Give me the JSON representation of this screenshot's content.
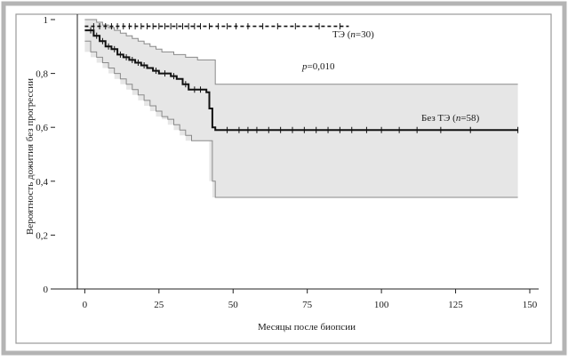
{
  "chart_data": {
    "type": "line",
    "title": "",
    "xlabel": "Месяцы после биопсии",
    "ylabel": "Вероятность дожития без прогрессии",
    "xlim": [
      -10,
      153
    ],
    "ylim": [
      0,
      1
    ],
    "x_ticks": [
      "0",
      "25",
      "50",
      "75",
      "100",
      "125",
      "150"
    ],
    "y_ticks": [
      "0",
      "0,2",
      "0,4",
      "0,6",
      "0,8",
      "1"
    ],
    "grid": false,
    "series": [
      {
        "name": "ТЭ",
        "n_label": "n",
        "n_value": "=30",
        "style": "dashed",
        "color": "#111111",
        "x": [
          0,
          89
        ],
        "y": [
          0.975,
          0.975
        ],
        "censored_x": [
          3,
          5,
          7,
          9,
          11,
          13,
          15,
          17,
          19,
          21,
          23,
          25,
          27,
          29,
          31,
          33,
          35,
          37,
          39,
          42,
          45,
          48,
          51,
          55,
          60,
          65,
          71,
          79,
          86
        ]
      },
      {
        "name": "Без ТЭ",
        "n_label": "n",
        "n_value": "=58",
        "style": "solid",
        "color": "#111111",
        "x": [
          0,
          3,
          5,
          7,
          9,
          11,
          13,
          15,
          17,
          19,
          21,
          23,
          25,
          29,
          31,
          33,
          35,
          38,
          40,
          41,
          42,
          43,
          44,
          146
        ],
        "y": [
          0.96,
          0.94,
          0.92,
          0.9,
          0.89,
          0.87,
          0.86,
          0.85,
          0.84,
          0.83,
          0.82,
          0.81,
          0.8,
          0.79,
          0.78,
          0.76,
          0.74,
          0.74,
          0.74,
          0.73,
          0.67,
          0.6,
          0.59,
          0.59
        ],
        "censored_x": [
          2,
          4,
          6,
          8,
          10,
          12,
          14,
          16,
          18,
          20,
          24,
          27,
          30,
          34,
          37,
          39,
          48,
          52,
          55,
          58,
          62,
          66,
          70,
          74,
          78,
          82,
          86,
          90,
          95,
          100,
          106,
          112,
          120,
          130,
          146
        ],
        "ci_upper": {
          "x": [
            0,
            2,
            4,
            6,
            8,
            10,
            12,
            14,
            16,
            18,
            20,
            22,
            24,
            26,
            28,
            30,
            32,
            34,
            36,
            38,
            40,
            42,
            44,
            146
          ],
          "y": [
            1.0,
            1.0,
            0.99,
            0.98,
            0.97,
            0.96,
            0.95,
            0.94,
            0.93,
            0.92,
            0.91,
            0.9,
            0.89,
            0.88,
            0.88,
            0.87,
            0.87,
            0.86,
            0.86,
            0.85,
            0.85,
            0.85,
            0.76,
            0.76
          ]
        },
        "ci_lower": {
          "x": [
            0,
            2,
            4,
            6,
            8,
            10,
            12,
            14,
            16,
            18,
            20,
            22,
            24,
            26,
            28,
            30,
            32,
            34,
            36,
            38,
            40,
            42,
            43,
            44,
            146
          ],
          "y": [
            0.92,
            0.88,
            0.86,
            0.84,
            0.82,
            0.8,
            0.78,
            0.76,
            0.74,
            0.72,
            0.7,
            0.68,
            0.66,
            0.64,
            0.63,
            0.61,
            0.59,
            0.57,
            0.55,
            0.55,
            0.55,
            0.55,
            0.4,
            0.34,
            0.34
          ]
        }
      }
    ],
    "annotations": [
      {
        "prefix": "p",
        "text": "=0,010"
      }
    ]
  }
}
